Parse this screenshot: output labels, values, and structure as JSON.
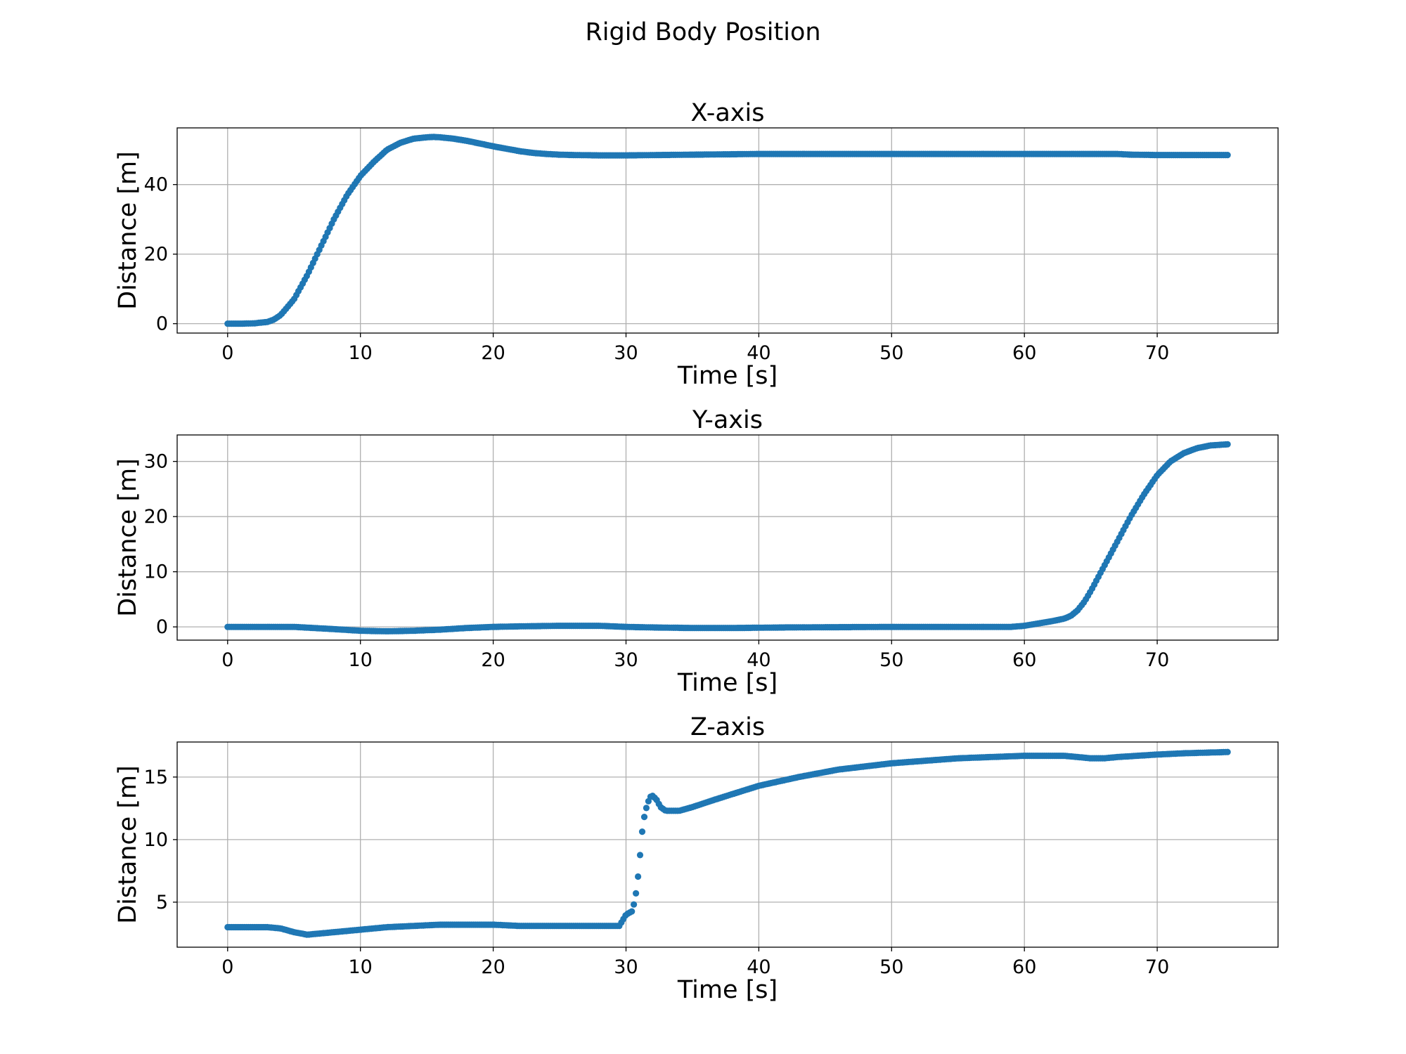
{
  "figure": {
    "title": "Rigid Body Position"
  },
  "chart_data": [
    {
      "type": "scatter",
      "title": "X-axis",
      "xlabel": "Time [s]",
      "ylabel": "Distance [m]",
      "xlim": [
        -3.8,
        79.1
      ],
      "ylim": [
        -2.7,
        56.3
      ],
      "xticks": [
        0,
        10,
        20,
        30,
        40,
        50,
        60,
        70
      ],
      "yticks": [
        0,
        20,
        40
      ],
      "grid": true,
      "color": "#1f77b4",
      "series": [
        {
          "x": [
            0,
            1,
            2,
            3,
            3.5,
            4,
            5,
            6,
            7,
            8,
            9,
            10,
            11,
            12,
            13,
            14,
            15,
            15.5,
            16,
            17,
            18,
            19,
            20,
            21,
            22,
            23,
            24,
            25,
            26,
            28,
            30,
            35,
            40,
            50,
            60,
            67,
            68,
            70,
            75.3
          ],
          "y": [
            0,
            0,
            0.1,
            0.5,
            1.2,
            2.5,
            7,
            14,
            22,
            30,
            37,
            42.5,
            46.5,
            50,
            52,
            53.2,
            53.6,
            53.7,
            53.6,
            53.2,
            52.6,
            51.8,
            51,
            50.3,
            49.6,
            49.1,
            48.8,
            48.6,
            48.5,
            48.4,
            48.4,
            48.6,
            48.8,
            48.8,
            48.8,
            48.8,
            48.6,
            48.5,
            48.5
          ]
        }
      ]
    },
    {
      "type": "scatter",
      "title": "Y-axis",
      "xlabel": "Time [s]",
      "ylabel": "Distance [m]",
      "xlim": [
        -3.8,
        79.1
      ],
      "ylim": [
        -2.4,
        34.8
      ],
      "xticks": [
        0,
        10,
        20,
        30,
        40,
        50,
        60,
        70
      ],
      "yticks": [
        0,
        10,
        20,
        30
      ],
      "grid": true,
      "color": "#1f77b4",
      "series": [
        {
          "x": [
            0,
            5,
            8,
            10,
            12,
            14,
            16,
            18,
            20,
            22,
            25,
            28,
            30,
            32,
            35,
            38,
            42,
            50,
            55,
            59,
            60,
            61,
            62,
            63,
            63.5,
            64,
            64.5,
            65,
            66,
            67,
            68,
            69,
            70,
            71,
            72,
            73,
            74,
            75.3
          ],
          "y": [
            0,
            0,
            -0.4,
            -0.7,
            -0.8,
            -0.7,
            -0.5,
            -0.2,
            0,
            0.1,
            0.2,
            0.2,
            0,
            -0.1,
            -0.2,
            -0.2,
            -0.1,
            0,
            0,
            0,
            0.2,
            0.6,
            1,
            1.5,
            2,
            3,
            4.5,
            6.5,
            11,
            15.5,
            20,
            24,
            27.5,
            30,
            31.5,
            32.4,
            32.9,
            33.1
          ]
        }
      ]
    },
    {
      "type": "scatter",
      "title": "Z-axis",
      "xlabel": "Time [s]",
      "ylabel": "Distance [m]",
      "xlim": [
        -3.8,
        79.1
      ],
      "ylim": [
        1.4,
        17.8
      ],
      "xticks": [
        0,
        10,
        20,
        30,
        40,
        50,
        60,
        70
      ],
      "yticks": [
        5,
        10,
        15
      ],
      "grid": true,
      "color": "#1f77b4",
      "series": [
        {
          "x": [
            0,
            2,
            3,
            4,
            5,
            6,
            7,
            8,
            10,
            12,
            14,
            16,
            20,
            22,
            26,
            29.5,
            30,
            30.5,
            30.8,
            31,
            31.2,
            31.4,
            31.6,
            31.8,
            32,
            32.3,
            32.6,
            33,
            34,
            35,
            37,
            40,
            43,
            46,
            50,
            55,
            60,
            63,
            64,
            65,
            66,
            67,
            70,
            72,
            75.3
          ],
          "y": [
            3,
            3,
            3,
            2.9,
            2.6,
            2.4,
            2.5,
            2.6,
            2.8,
            3,
            3.1,
            3.2,
            3.2,
            3.1,
            3.1,
            3.1,
            4,
            4.3,
            6,
            8,
            10.5,
            12,
            12.8,
            13.4,
            13.5,
            13.2,
            12.6,
            12.3,
            12.3,
            12.6,
            13.3,
            14.3,
            15,
            15.6,
            16.1,
            16.5,
            16.7,
            16.7,
            16.6,
            16.5,
            16.5,
            16.6,
            16.8,
            16.9,
            17
          ]
        }
      ]
    }
  ]
}
